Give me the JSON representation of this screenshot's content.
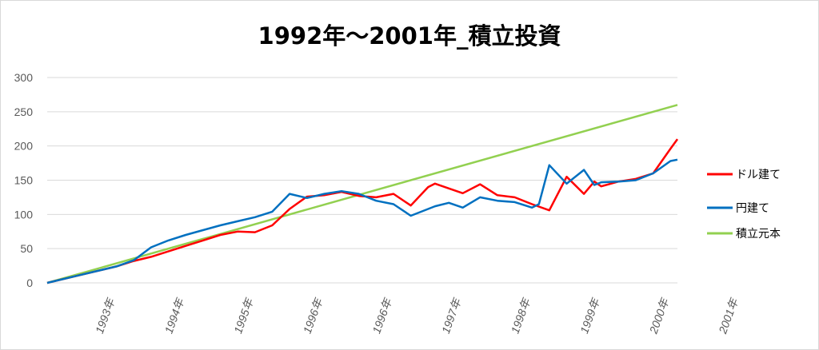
{
  "chart_data": {
    "type": "line",
    "title": "1992年～2001年_積立投資",
    "ylim": [
      0,
      300
    ],
    "yticks": [
      0,
      50,
      100,
      150,
      200,
      250,
      300
    ],
    "grid": true,
    "legend_position": "right",
    "x_tick_labels": [
      "1993年",
      "1994年",
      "1995年",
      "1996年",
      "1996年",
      "1997年",
      "1998年",
      "1999年",
      "2000年",
      "2001年"
    ],
    "series": [
      {
        "name": "ドル建て",
        "color": "#ff0000",
        "x": [
          0,
          0.5,
          1,
          1.25,
          1.5,
          1.75,
          2,
          2.25,
          2.5,
          2.75,
          3,
          3.25,
          3.5,
          3.75,
          4,
          4.25,
          4.5,
          4.75,
          5,
          5.25,
          5.5,
          5.6,
          5.8,
          6,
          6.25,
          6.5,
          6.75,
          7,
          7.25,
          7.5,
          7.75,
          7.9,
          8,
          8.25,
          8.5,
          8.75,
          9,
          9.1
        ],
        "values": [
          0,
          12,
          24,
          32,
          38,
          46,
          54,
          62,
          70,
          75,
          74,
          84,
          108,
          126,
          128,
          133,
          127,
          125,
          130,
          113,
          140,
          145,
          138,
          131,
          144,
          128,
          125,
          115,
          106,
          155,
          130,
          148,
          141,
          148,
          152,
          160,
          196,
          210
        ]
      },
      {
        "name": "円建て",
        "color": "#0070c0",
        "x": [
          0,
          0.5,
          1,
          1.25,
          1.5,
          1.75,
          2,
          2.25,
          2.5,
          2.75,
          3,
          3.25,
          3.5,
          3.75,
          4,
          4.25,
          4.5,
          4.75,
          5,
          5.25,
          5.5,
          5.6,
          5.8,
          6,
          6.25,
          6.5,
          6.75,
          7,
          7.1,
          7.25,
          7.5,
          7.75,
          7.9,
          8,
          8.25,
          8.5,
          8.75,
          9,
          9.1
        ],
        "values": [
          0,
          12,
          24,
          33,
          52,
          62,
          70,
          77,
          84,
          90,
          96,
          104,
          130,
          124,
          130,
          134,
          130,
          120,
          115,
          98,
          108,
          112,
          117,
          110,
          125,
          120,
          118,
          110,
          115,
          172,
          145,
          165,
          143,
          147,
          148,
          150,
          160,
          178,
          180
        ]
      },
      {
        "name": "積立元本",
        "color": "#92d050",
        "x": [
          0,
          9.1
        ],
        "values": [
          0,
          260
        ]
      }
    ]
  }
}
